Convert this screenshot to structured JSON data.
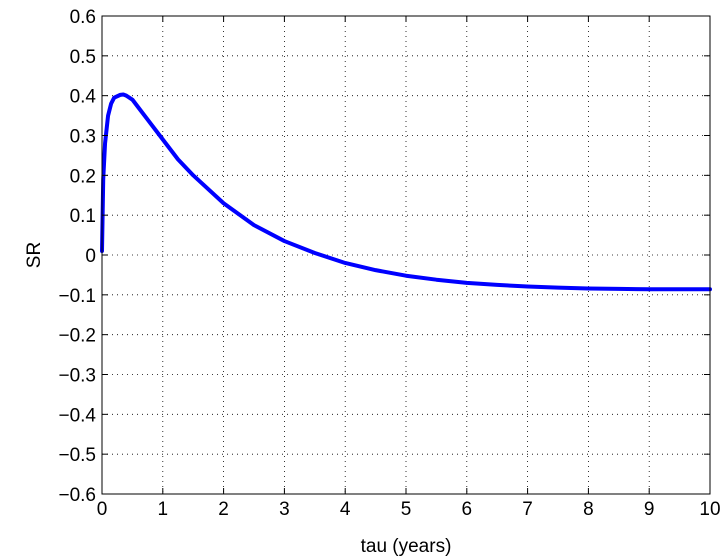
{
  "chart_data": {
    "type": "line",
    "title": "",
    "xlabel": "tau (years)",
    "ylabel": "SR",
    "xlim": [
      0,
      10
    ],
    "ylim": [
      -0.6,
      0.6
    ],
    "grid": true,
    "legend": "none",
    "x_ticks": [
      "0",
      "1",
      "2",
      "3",
      "4",
      "5",
      "6",
      "7",
      "8",
      "9",
      "10"
    ],
    "y_ticks": [
      "0.6",
      "0.5",
      "0.4",
      "0.3",
      "0.2",
      "0.1",
      "0",
      "−0.1",
      "−0.2",
      "−0.3",
      "−0.4",
      "−0.5",
      "−0.6"
    ],
    "series": [
      {
        "color": "#0000ff",
        "x": [
          0.0,
          0.02,
          0.05,
          0.1,
          0.15,
          0.2,
          0.3,
          0.35,
          0.4,
          0.5,
          0.6,
          0.75,
          1.0,
          1.25,
          1.5,
          2.0,
          2.5,
          3.0,
          3.5,
          4.0,
          4.5,
          5.0,
          5.5,
          6.0,
          6.5,
          7.0,
          7.5,
          8.0,
          8.5,
          9.0,
          9.5,
          10.0
        ],
        "y": [
          0.01,
          0.19,
          0.28,
          0.35,
          0.38,
          0.395,
          0.402,
          0.403,
          0.4,
          0.39,
          0.37,
          0.34,
          0.29,
          0.24,
          0.2,
          0.13,
          0.075,
          0.035,
          0.005,
          -0.02,
          -0.038,
          -0.052,
          -0.062,
          -0.07,
          -0.075,
          -0.079,
          -0.082,
          -0.084,
          -0.085,
          -0.086,
          -0.086,
          -0.086
        ]
      }
    ]
  }
}
